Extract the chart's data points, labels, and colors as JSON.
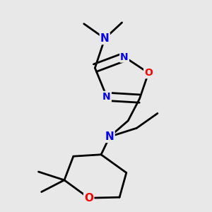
{
  "bg_color": "#e8e8e8",
  "atom_colors": {
    "C": "#000000",
    "N": "#0000ff",
    "O": "#ff0000"
  },
  "bond_color": "#000000",
  "bond_width": 2.0,
  "fig_width": 3.0,
  "fig_height": 3.0,
  "dpi": 100
}
